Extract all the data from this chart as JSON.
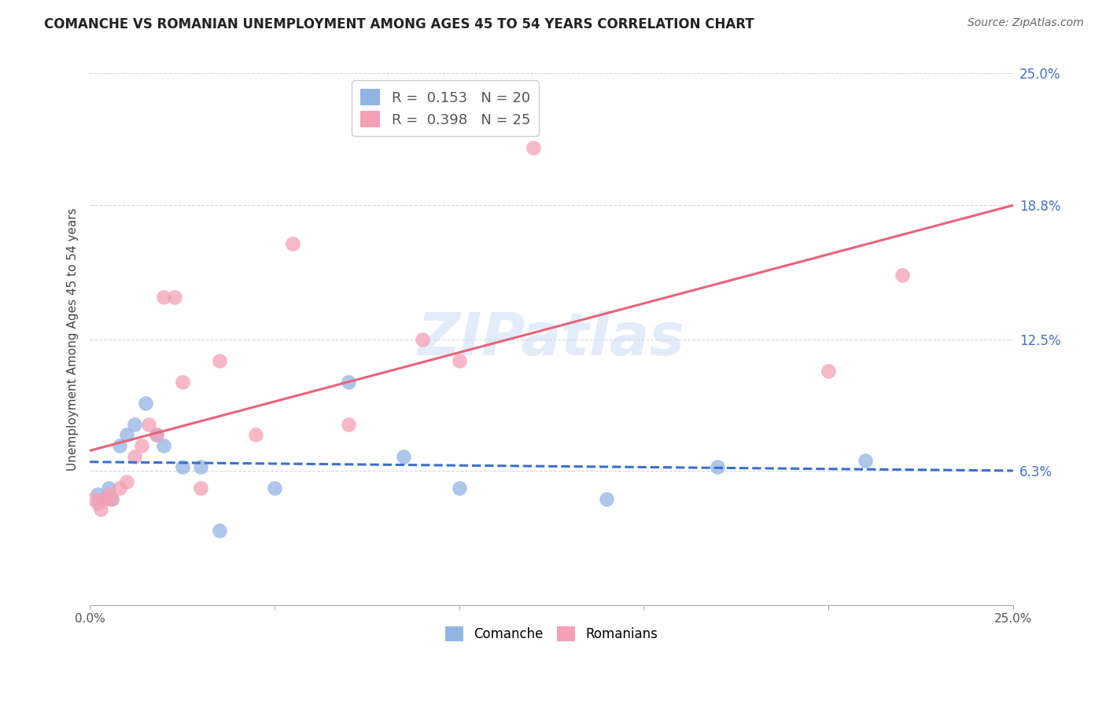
{
  "title": "COMANCHE VS ROMANIAN UNEMPLOYMENT AMONG AGES 45 TO 54 YEARS CORRELATION CHART",
  "source": "Source: ZipAtlas.com",
  "ylabel": "Unemployment Among Ages 45 to 54 years",
  "xlim": [
    0.0,
    25.0
  ],
  "ylim": [
    0.0,
    25.0
  ],
  "yticks": [
    6.3,
    12.5,
    18.8,
    25.0
  ],
  "ytick_labels": [
    "6.3%",
    "12.5%",
    "18.8%",
    "25.0%"
  ],
  "watermark": "ZIPatlas",
  "comanche_color": "#92b4e3",
  "romanian_color": "#f4a0b5",
  "comanche_line_color": "#3b6fcc",
  "romanian_line_color": "#e8637a",
  "legend_R_comanche": "R =  0.153",
  "legend_N_comanche": "N = 20",
  "legend_R_romanian": "R =  0.398",
  "legend_N_romanian": "N = 25",
  "comanche_x": [
    0.2,
    0.4,
    0.5,
    0.6,
    0.8,
    1.0,
    1.2,
    1.5,
    1.8,
    2.0,
    2.5,
    3.0,
    3.5,
    5.0,
    7.0,
    8.5,
    10.0,
    14.0,
    17.0,
    21.0
  ],
  "comanche_y": [
    5.2,
    5.0,
    5.5,
    5.0,
    7.5,
    8.0,
    8.5,
    9.5,
    8.0,
    7.5,
    6.5,
    6.5,
    3.5,
    5.5,
    10.5,
    7.0,
    5.5,
    5.0,
    6.5,
    6.8
  ],
  "romanian_x": [
    0.1,
    0.2,
    0.3,
    0.4,
    0.5,
    0.6,
    0.8,
    1.0,
    1.2,
    1.4,
    1.6,
    1.8,
    2.0,
    2.3,
    2.5,
    3.0,
    3.5,
    4.5,
    5.5,
    7.0,
    9.0,
    10.0,
    12.0,
    20.0,
    22.0
  ],
  "romanian_y": [
    5.0,
    4.8,
    4.5,
    5.0,
    5.2,
    5.0,
    5.5,
    5.8,
    7.0,
    7.5,
    8.5,
    8.0,
    14.5,
    14.5,
    10.5,
    5.5,
    11.5,
    8.0,
    17.0,
    8.5,
    12.5,
    11.5,
    21.5,
    11.0,
    15.5
  ],
  "grid_color": "#cccccc",
  "background_color": "#ffffff",
  "tick_color": "#4472c4",
  "title_fontsize": 12,
  "source_fontsize": 10,
  "ylabel_fontsize": 11
}
